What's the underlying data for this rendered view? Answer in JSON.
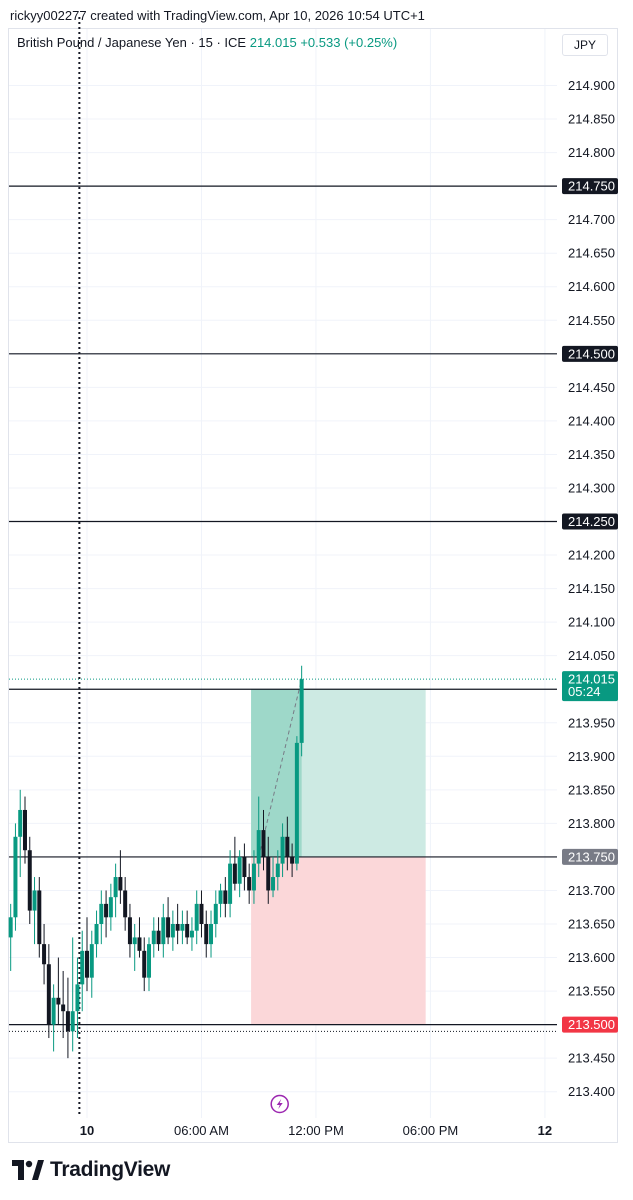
{
  "attribution": "rickyy002277 created with TradingView.com, Apr 10, 2026 10:54 UTC+1",
  "legend": {
    "symbol": "British Pound / Japanese Yen · 15 · ICE",
    "price": "214.015",
    "change": "+0.533 (+0.25%)"
  },
  "currency_button": "JPY",
  "brand": "TradingView",
  "colors": {
    "up": "#089981",
    "down": "#131722",
    "profit_zone": "#cdeae3",
    "loss_zone": "#fbd7d9",
    "stop_label": "#f23645"
  },
  "chart_data": {
    "type": "candlestick",
    "symbol": "GBPJPY",
    "interval": "15",
    "y_ticks": [
      "214.900",
      "214.850",
      "214.800",
      "214.750",
      "214.700",
      "214.650",
      "214.600",
      "214.550",
      "214.500",
      "214.450",
      "214.400",
      "214.350",
      "214.300",
      "214.250",
      "214.200",
      "214.150",
      "214.100",
      "214.050",
      "214.000",
      "213.950",
      "213.900",
      "213.850",
      "213.800",
      "213.750",
      "213.700",
      "213.650",
      "213.600",
      "213.550",
      "213.500",
      "213.450",
      "213.400"
    ],
    "ylim": [
      213.37,
      214.96
    ],
    "x_ticks": [
      {
        "label": "10",
        "bold": true,
        "hour": 24
      },
      {
        "label": "06:00 AM",
        "bold": false,
        "hour": 30
      },
      {
        "label": "12:00 PM",
        "bold": false,
        "hour": 36
      },
      {
        "label": "06:00 PM",
        "bold": false,
        "hour": 42
      },
      {
        "label": "12",
        "bold": true,
        "hour": 48
      }
    ],
    "horizontal_lines": [
      {
        "price": 214.75,
        "label": "214.750",
        "label_color": "#131722"
      },
      {
        "price": 214.5,
        "label": "214.500",
        "label_color": "#131722"
      },
      {
        "price": 214.25,
        "label": "214.250",
        "label_color": "#131722"
      },
      {
        "price": 214.0,
        "label": "",
        "label_color": ""
      },
      {
        "price": 213.75,
        "label": "213.750",
        "label_color": "#787b86"
      },
      {
        "price": 213.5,
        "label": "213.500",
        "label_color": "#f23645"
      }
    ],
    "last_price": {
      "price": 214.015,
      "label": "214.015",
      "countdown": "05:24"
    },
    "dotted_low": 213.49,
    "vertical_marker_hour": 23.6,
    "position": {
      "start_hour": 32.6,
      "end_hour": 41.75,
      "entry": 213.75,
      "target": 214.0,
      "stop": 213.5
    },
    "candles": [
      {
        "h": 20.0,
        "o": 213.63,
        "hi": 213.68,
        "lo": 213.58,
        "c": 213.66
      },
      {
        "h": 20.25,
        "o": 213.66,
        "hi": 213.8,
        "lo": 213.64,
        "c": 213.78
      },
      {
        "h": 20.5,
        "o": 213.78,
        "hi": 213.85,
        "lo": 213.72,
        "c": 213.82
      },
      {
        "h": 20.75,
        "o": 213.82,
        "hi": 213.84,
        "lo": 213.74,
        "c": 213.76
      },
      {
        "h": 21.0,
        "o": 213.76,
        "hi": 213.78,
        "lo": 213.65,
        "c": 213.67
      },
      {
        "h": 21.25,
        "o": 213.67,
        "hi": 213.72,
        "lo": 213.62,
        "c": 213.7
      },
      {
        "h": 21.5,
        "o": 213.7,
        "hi": 213.72,
        "lo": 213.6,
        "c": 213.62
      },
      {
        "h": 21.75,
        "o": 213.62,
        "hi": 213.65,
        "lo": 213.56,
        "c": 213.59
      },
      {
        "h": 22.0,
        "o": 213.59,
        "hi": 213.62,
        "lo": 213.48,
        "c": 213.5
      },
      {
        "h": 22.25,
        "o": 213.5,
        "hi": 213.56,
        "lo": 213.46,
        "c": 213.54
      },
      {
        "h": 22.5,
        "o": 213.54,
        "hi": 213.6,
        "lo": 213.5,
        "c": 213.53
      },
      {
        "h": 22.75,
        "o": 213.53,
        "hi": 213.58,
        "lo": 213.48,
        "c": 213.52
      },
      {
        "h": 23.0,
        "o": 213.52,
        "hi": 213.57,
        "lo": 213.45,
        "c": 213.49
      },
      {
        "h": 23.25,
        "o": 213.49,
        "hi": 213.63,
        "lo": 213.46,
        "c": 213.52
      },
      {
        "h": 23.5,
        "o": 213.52,
        "hi": 213.6,
        "lo": 213.48,
        "c": 213.56
      },
      {
        "h": 23.75,
        "o": 213.56,
        "hi": 213.64,
        "lo": 213.52,
        "c": 213.61
      },
      {
        "h": 24.0,
        "o": 213.61,
        "hi": 213.66,
        "lo": 213.55,
        "c": 213.57
      },
      {
        "h": 24.25,
        "o": 213.57,
        "hi": 213.64,
        "lo": 213.54,
        "c": 213.62
      },
      {
        "h": 24.5,
        "o": 213.62,
        "hi": 213.67,
        "lo": 213.6,
        "c": 213.65
      },
      {
        "h": 24.75,
        "o": 213.65,
        "hi": 213.7,
        "lo": 213.62,
        "c": 213.68
      },
      {
        "h": 25.0,
        "o": 213.68,
        "hi": 213.7,
        "lo": 213.63,
        "c": 213.66
      },
      {
        "h": 25.25,
        "o": 213.66,
        "hi": 213.71,
        "lo": 213.64,
        "c": 213.69
      },
      {
        "h": 25.5,
        "o": 213.69,
        "hi": 213.74,
        "lo": 213.66,
        "c": 213.72
      },
      {
        "h": 25.75,
        "o": 213.72,
        "hi": 213.76,
        "lo": 213.68,
        "c": 213.7
      },
      {
        "h": 26.0,
        "o": 213.7,
        "hi": 213.72,
        "lo": 213.64,
        "c": 213.66
      },
      {
        "h": 26.25,
        "o": 213.66,
        "hi": 213.68,
        "lo": 213.6,
        "c": 213.62
      },
      {
        "h": 26.5,
        "o": 213.62,
        "hi": 213.65,
        "lo": 213.58,
        "c": 213.63
      },
      {
        "h": 26.75,
        "o": 213.63,
        "hi": 213.66,
        "lo": 213.6,
        "c": 213.61
      },
      {
        "h": 27.0,
        "o": 213.61,
        "hi": 213.63,
        "lo": 213.55,
        "c": 213.57
      },
      {
        "h": 27.25,
        "o": 213.57,
        "hi": 213.63,
        "lo": 213.55,
        "c": 213.62
      },
      {
        "h": 27.5,
        "o": 213.62,
        "hi": 213.66,
        "lo": 213.6,
        "c": 213.64
      },
      {
        "h": 27.75,
        "o": 213.64,
        "hi": 213.66,
        "lo": 213.61,
        "c": 213.62
      },
      {
        "h": 28.0,
        "o": 213.62,
        "hi": 213.68,
        "lo": 213.6,
        "c": 213.66
      },
      {
        "h": 28.25,
        "o": 213.66,
        "hi": 213.69,
        "lo": 213.62,
        "c": 213.63
      },
      {
        "h": 28.5,
        "o": 213.63,
        "hi": 213.67,
        "lo": 213.61,
        "c": 213.65
      },
      {
        "h": 28.75,
        "o": 213.65,
        "hi": 213.68,
        "lo": 213.62,
        "c": 213.64
      },
      {
        "h": 29.0,
        "o": 213.64,
        "hi": 213.67,
        "lo": 213.62,
        "c": 213.65
      },
      {
        "h": 29.25,
        "o": 213.65,
        "hi": 213.67,
        "lo": 213.62,
        "c": 213.63
      },
      {
        "h": 29.5,
        "o": 213.63,
        "hi": 213.66,
        "lo": 213.61,
        "c": 213.64
      },
      {
        "h": 29.75,
        "o": 213.64,
        "hi": 213.7,
        "lo": 213.62,
        "c": 213.68
      },
      {
        "h": 30.0,
        "o": 213.68,
        "hi": 213.7,
        "lo": 213.63,
        "c": 213.65
      },
      {
        "h": 30.25,
        "o": 213.65,
        "hi": 213.67,
        "lo": 213.6,
        "c": 213.62
      },
      {
        "h": 30.5,
        "o": 213.62,
        "hi": 213.67,
        "lo": 213.6,
        "c": 213.65
      },
      {
        "h": 30.75,
        "o": 213.65,
        "hi": 213.7,
        "lo": 213.63,
        "c": 213.68
      },
      {
        "h": 31.0,
        "o": 213.68,
        "hi": 213.71,
        "lo": 213.66,
        "c": 213.7
      },
      {
        "h": 31.25,
        "o": 213.7,
        "hi": 213.72,
        "lo": 213.66,
        "c": 213.68
      },
      {
        "h": 31.5,
        "o": 213.68,
        "hi": 213.76,
        "lo": 213.66,
        "c": 213.74
      },
      {
        "h": 31.75,
        "o": 213.74,
        "hi": 213.78,
        "lo": 213.7,
        "c": 213.71
      },
      {
        "h": 32.0,
        "o": 213.71,
        "hi": 213.76,
        "lo": 213.69,
        "c": 213.75
      },
      {
        "h": 32.25,
        "o": 213.75,
        "hi": 213.77,
        "lo": 213.7,
        "c": 213.72
      },
      {
        "h": 32.5,
        "o": 213.72,
        "hi": 213.74,
        "lo": 213.68,
        "c": 213.7
      },
      {
        "h": 32.75,
        "o": 213.7,
        "hi": 213.76,
        "lo": 213.68,
        "c": 213.74
      },
      {
        "h": 33.0,
        "o": 213.74,
        "hi": 213.84,
        "lo": 213.72,
        "c": 213.79
      },
      {
        "h": 33.25,
        "o": 213.79,
        "hi": 213.82,
        "lo": 213.73,
        "c": 213.75
      },
      {
        "h": 33.5,
        "o": 213.75,
        "hi": 213.78,
        "lo": 213.68,
        "c": 213.7
      },
      {
        "h": 33.75,
        "o": 213.7,
        "hi": 213.75,
        "lo": 213.69,
        "c": 213.72
      },
      {
        "h": 34.0,
        "o": 213.72,
        "hi": 213.76,
        "lo": 213.7,
        "c": 213.74
      },
      {
        "h": 34.25,
        "o": 213.74,
        "hi": 213.8,
        "lo": 213.72,
        "c": 213.78
      },
      {
        "h": 34.5,
        "o": 213.78,
        "hi": 213.81,
        "lo": 213.73,
        "c": 213.75
      },
      {
        "h": 34.75,
        "o": 213.75,
        "hi": 213.77,
        "lo": 213.72,
        "c": 213.74
      },
      {
        "h": 35.0,
        "o": 213.74,
        "hi": 213.93,
        "lo": 213.73,
        "c": 213.92
      },
      {
        "h": 35.25,
        "o": 213.92,
        "hi": 214.035,
        "lo": 213.9,
        "c": 214.015
      }
    ]
  }
}
